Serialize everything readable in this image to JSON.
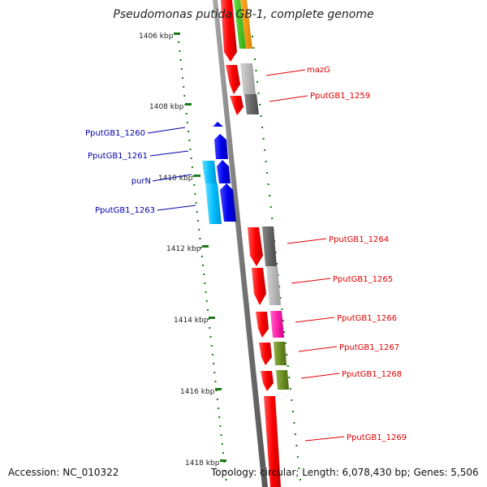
{
  "title": "Pseudomonas putida GB-1, complete genome",
  "footer": {
    "accession": "Accession: NC_010322",
    "summary": "Topology: circular; Length: 6,078,430 bp; Genes: 5,506"
  },
  "colors": {
    "forward_label": "#e00000",
    "reverse_label": "#0000aa",
    "ruler": "#1a7a1a",
    "backbone": "#888888"
  },
  "ticks": [
    "1406 kbp",
    "1408 kbp",
    "1410 kbp",
    "1412 kbp",
    "1414 kbp",
    "1416 kbp",
    "1418 kbp"
  ],
  "genes_forward": [
    {
      "name": "mazG",
      "color": "#aaaaaa"
    },
    {
      "name": "PputGB1_1259",
      "color": "#666666"
    },
    {
      "name": "PputGB1_1264",
      "color": "#666666"
    },
    {
      "name": "PputGB1_1265",
      "color": "#bbbbbb"
    },
    {
      "name": "PputGB1_1266",
      "color": "#ff22aa"
    },
    {
      "name": "PputGB1_1267",
      "color": "#6b8e23"
    },
    {
      "name": "PputGB1_1268",
      "color": "#6b8e23"
    },
    {
      "name": "PputGB1_1269",
      "color": "#ee0000"
    }
  ],
  "genes_reverse": [
    {
      "name": "PputGB1_1260",
      "color": "#0000ee"
    },
    {
      "name": "PputGB1_1261",
      "color": "#0000ee"
    },
    {
      "name": "purN",
      "color": "#00bfff"
    },
    {
      "name": "PputGB1_1263",
      "color": "#00bfff"
    }
  ]
}
